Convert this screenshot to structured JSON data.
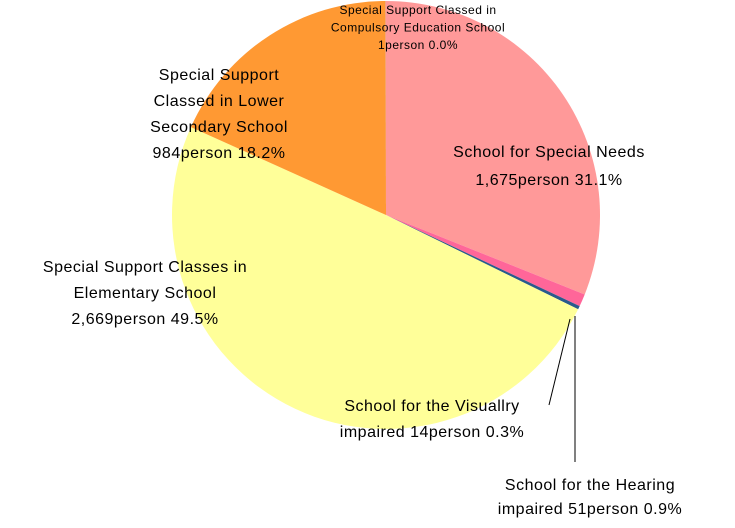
{
  "chart_data": {
    "type": "pie",
    "categories": [
      "School for Special Needs",
      "School for the Hearing impaired",
      "School for the Visuallry impaired",
      "Special Support Classes in Elementary School",
      "Special Support Classed in Lower Secondary School",
      "Special Support Classed in Compulsory Education School"
    ],
    "values": [
      1675,
      51,
      14,
      2669,
      984,
      1
    ],
    "labels": [
      [
        "School for Special Needs",
        "1,675person 31.1%"
      ],
      [
        "School for the Hearing",
        "impaired 51person 0.9%"
      ],
      [
        "School for the Visuallry",
        "impaired 14person 0.3%"
      ],
      [
        "Special Support Classes in",
        "Elementary School",
        "2,669person 49.5%"
      ],
      [
        "Special Support",
        "Classed in Lower",
        "Secondary School",
        "984person 18.2%"
      ],
      [
        "Special Support Classed in",
        "Compulsory Education School",
        "1person 0.0%"
      ]
    ],
    "colors": [
      "#ff9999",
      "#ff6699",
      "#2a5a8c",
      "#ffff99",
      "#ff9933",
      "#cc99ff"
    ]
  }
}
